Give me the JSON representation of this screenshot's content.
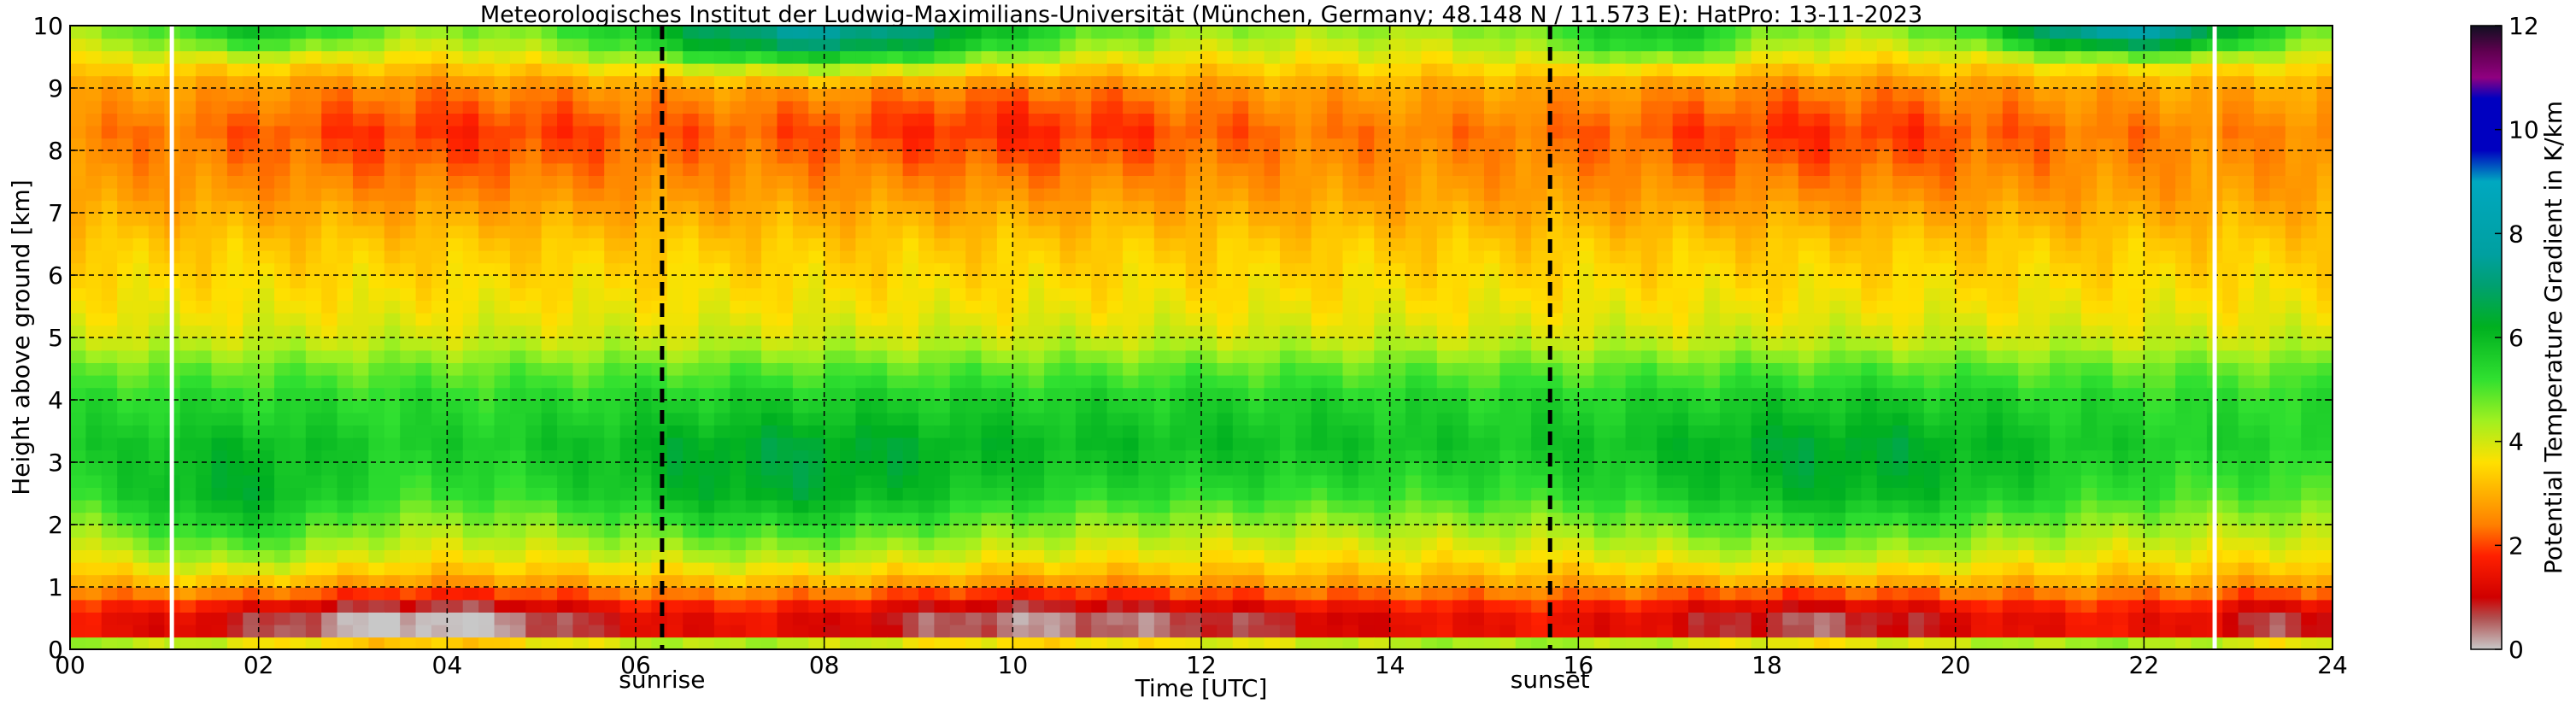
{
  "chart_data": {
    "type": "heatmap",
    "title": "Meteorologisches Institut der Ludwig-Maximilians-Universität (München, Germany; 48.148 N / 11.573 E):    HatPro: 13-11-2023",
    "xlabel": "Time [UTC]",
    "ylabel": "Height above ground [km]",
    "xlim": [
      0,
      24
    ],
    "ylim": [
      0,
      10
    ],
    "x_ticks": [
      0,
      2,
      4,
      6,
      8,
      10,
      12,
      14,
      16,
      18,
      20,
      22,
      24
    ],
    "x_tick_labels": [
      "00",
      "02",
      "04",
      "06",
      "08",
      "10",
      "12",
      "14",
      "16",
      "18",
      "20",
      "22",
      "24"
    ],
    "y_ticks": [
      0,
      1,
      2,
      3,
      4,
      5,
      6,
      7,
      8,
      9,
      10
    ],
    "y_tick_labels": [
      "0",
      "1",
      "2",
      "3",
      "4",
      "5",
      "6",
      "7",
      "8",
      "9",
      "10"
    ],
    "grid": true,
    "markers": [
      {
        "time": 6.28,
        "label": "sunrise"
      },
      {
        "time": 15.7,
        "label": "sunset"
      }
    ],
    "data_gaps": [
      1.08,
      22.75
    ],
    "colorbar": {
      "label": "Potential Temperature Gradient in K/km",
      "range": [
        0,
        12
      ],
      "ticks": [
        0,
        2,
        4,
        6,
        8,
        10,
        12
      ],
      "tick_labels": [
        "0",
        "2",
        "4",
        "6",
        "8",
        "10",
        "12"
      ],
      "colors": [
        {
          "value": 0.0,
          "color": "#c8c8c8"
        },
        {
          "value": 0.6,
          "color": "#b05050"
        },
        {
          "value": 1.0,
          "color": "#d00000"
        },
        {
          "value": 1.8,
          "color": "#ff2000"
        },
        {
          "value": 2.4,
          "color": "#ff8000"
        },
        {
          "value": 3.0,
          "color": "#ffb000"
        },
        {
          "value": 3.6,
          "color": "#ffe000"
        },
        {
          "value": 4.4,
          "color": "#a0f020"
        },
        {
          "value": 5.2,
          "color": "#30e030"
        },
        {
          "value": 6.2,
          "color": "#00b020"
        },
        {
          "value": 7.0,
          "color": "#00a070"
        },
        {
          "value": 7.6,
          "color": "#00a0a0"
        },
        {
          "value": 9.0,
          "color": "#00a8c0"
        },
        {
          "value": 9.6,
          "color": "#0000c0"
        },
        {
          "value": 10.6,
          "color": "#0000c0"
        },
        {
          "value": 11.0,
          "color": "#900080"
        },
        {
          "value": 11.5,
          "color": "#600050"
        },
        {
          "value": 12.0,
          "color": "#101020"
        }
      ]
    },
    "vertical_profile": [
      {
        "height": 0.0,
        "value": 4.8
      },
      {
        "height": 0.1,
        "value": 4.4
      },
      {
        "height": 0.2,
        "value": 1.6
      },
      {
        "height": 0.45,
        "value": 1.5
      },
      {
        "height": 0.75,
        "value": 1.9
      },
      {
        "height": 1.0,
        "value": 2.7
      },
      {
        "height": 1.4,
        "value": 3.5
      },
      {
        "height": 2.0,
        "value": 4.3
      },
      {
        "height": 2.5,
        "value": 5.0
      },
      {
        "height": 3.3,
        "value": 5.5
      },
      {
        "height": 4.0,
        "value": 5.3
      },
      {
        "height": 4.5,
        "value": 4.8
      },
      {
        "height": 5.0,
        "value": 4.0
      },
      {
        "height": 5.5,
        "value": 3.7
      },
      {
        "height": 6.5,
        "value": 3.3
      },
      {
        "height": 7.3,
        "value": 2.8
      },
      {
        "height": 8.3,
        "value": 2.5
      },
      {
        "height": 9.0,
        "value": 2.9
      },
      {
        "height": 9.5,
        "value": 3.8
      },
      {
        "height": 10.0,
        "value": 4.5
      }
    ],
    "time_features": [
      {
        "t": 2.8,
        "h": 0.4,
        "st": 1.3,
        "sh": 0.35,
        "a": -0.9
      },
      {
        "t": 4.3,
        "h": 0.4,
        "st": 1.2,
        "sh": 0.35,
        "a": -1.1
      },
      {
        "t": 10.0,
        "h": 0.45,
        "st": 1.4,
        "sh": 0.4,
        "a": -1.2
      },
      {
        "t": 12.5,
        "h": 0.4,
        "st": 1.2,
        "sh": 0.3,
        "a": -0.6
      },
      {
        "t": 18.5,
        "h": 0.45,
        "st": 1.2,
        "sh": 0.4,
        "a": -1.1
      },
      {
        "t": 23.5,
        "h": 0.4,
        "st": 0.6,
        "sh": 0.35,
        "a": -0.9
      },
      {
        "t": 1.7,
        "h": 2.2,
        "st": 0.9,
        "sh": 0.8,
        "a": 1.3
      },
      {
        "t": 7.5,
        "h": 2.5,
        "st": 1.6,
        "sh": 0.9,
        "a": 1.2
      },
      {
        "t": 18.8,
        "h": 2.6,
        "st": 1.6,
        "sh": 1.0,
        "a": 1.1
      },
      {
        "t": 12.0,
        "h": 3.2,
        "st": 2.5,
        "sh": 0.8,
        "a": 0.4
      },
      {
        "t": 4.0,
        "h": 8.4,
        "st": 1.8,
        "sh": 0.8,
        "a": -0.6
      },
      {
        "t": 10.0,
        "h": 8.5,
        "st": 1.8,
        "sh": 0.7,
        "a": -0.7
      },
      {
        "t": 18.5,
        "h": 8.4,
        "st": 1.8,
        "sh": 0.8,
        "a": -0.6
      },
      {
        "t": 8.0,
        "h": 9.85,
        "st": 1.6,
        "sh": 0.35,
        "a": 3.2
      },
      {
        "t": 21.8,
        "h": 9.9,
        "st": 1.0,
        "sh": 0.25,
        "a": 3.5
      },
      {
        "t": 16.8,
        "h": 9.8,
        "st": 0.8,
        "sh": 0.3,
        "a": 1.6
      },
      {
        "t": 2.0,
        "h": 9.9,
        "st": 0.8,
        "sh": 0.25,
        "a": 1.4
      }
    ]
  }
}
